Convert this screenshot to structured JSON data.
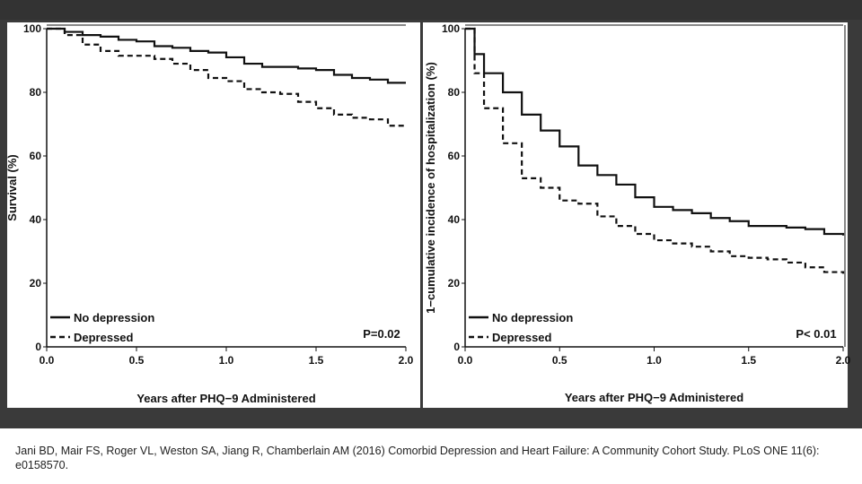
{
  "chart_data": [
    {
      "type": "line",
      "ylabel": "Survival (%)",
      "xlabel": "Years after PHQ−9 Administered",
      "xlim": [
        0,
        2
      ],
      "ylim": [
        0,
        100
      ],
      "xticks": [
        "0.0",
        "0.5",
        "1.0",
        "1.5",
        "2.0"
      ],
      "yticks": [
        "0",
        "20",
        "40",
        "60",
        "80",
        "100"
      ],
      "legend": [
        "No depression",
        "Depressed"
      ],
      "annotation": "P=0.02",
      "series": [
        {
          "name": "No depression",
          "style": "solid",
          "x": [
            0,
            0.1,
            0.2,
            0.3,
            0.4,
            0.5,
            0.6,
            0.7,
            0.8,
            0.9,
            1.0,
            1.1,
            1.2,
            1.3,
            1.4,
            1.5,
            1.6,
            1.7,
            1.8,
            1.9,
            2.0
          ],
          "y": [
            100,
            99,
            98,
            97.5,
            96.5,
            96,
            94.5,
            94,
            93,
            92.5,
            91,
            89,
            88,
            88,
            87.5,
            87,
            85.5,
            84.5,
            84,
            83,
            83
          ]
        },
        {
          "name": "Depressed",
          "style": "dashed",
          "x": [
            0,
            0.1,
            0.2,
            0.3,
            0.4,
            0.5,
            0.6,
            0.7,
            0.8,
            0.9,
            1.0,
            1.1,
            1.2,
            1.3,
            1.4,
            1.5,
            1.6,
            1.7,
            1.8,
            1.9,
            2.0
          ],
          "y": [
            100,
            98,
            95,
            93,
            91.5,
            91.5,
            90.5,
            89,
            87,
            84.5,
            83.5,
            81,
            80,
            79.5,
            77,
            75,
            73,
            72,
            71.5,
            69.5,
            69
          ]
        }
      ]
    },
    {
      "type": "line",
      "ylabel": "1−cumulative incidence of hospitalization (%)",
      "xlabel": "Years after PHQ−9 Administered",
      "xlim": [
        0,
        2
      ],
      "ylim": [
        0,
        100
      ],
      "xticks": [
        "0.0",
        "0.5",
        "1.0",
        "1.5",
        "2.0"
      ],
      "yticks": [
        "0",
        "20",
        "40",
        "60",
        "80",
        "100"
      ],
      "legend": [
        "No depression",
        "Depressed"
      ],
      "annotation": "P< 0.01",
      "series": [
        {
          "name": "No depression",
          "style": "solid",
          "x": [
            0,
            0.05,
            0.1,
            0.2,
            0.3,
            0.4,
            0.5,
            0.6,
            0.7,
            0.8,
            0.9,
            1.0,
            1.1,
            1.2,
            1.3,
            1.4,
            1.5,
            1.6,
            1.7,
            1.8,
            1.9,
            2.0
          ],
          "y": [
            100,
            92,
            86,
            80,
            73,
            68,
            63,
            57,
            54,
            51,
            47,
            44,
            43,
            42,
            40.5,
            39.5,
            38,
            38,
            37.5,
            37,
            35.5,
            35
          ]
        },
        {
          "name": "Depressed",
          "style": "dashed",
          "x": [
            0,
            0.05,
            0.1,
            0.2,
            0.3,
            0.4,
            0.5,
            0.6,
            0.7,
            0.8,
            0.9,
            1.0,
            1.1,
            1.2,
            1.3,
            1.4,
            1.5,
            1.6,
            1.7,
            1.8,
            1.9,
            2.0
          ],
          "y": [
            100,
            86,
            75,
            64,
            53,
            50,
            46,
            45,
            41,
            38,
            35.5,
            33.5,
            32.5,
            31.5,
            30,
            28.5,
            28,
            27.5,
            26.5,
            25,
            23.5,
            23
          ]
        }
      ]
    }
  ],
  "citation": "Jani BD, Mair FS, Roger VL, Weston SA, Jiang R, Chamberlain AM (2016) Comorbid Depression and Heart Failure: A Community Cohort Study. PLoS ONE 11(6): e0158570.",
  "colors": {
    "background": "#3a3a3a",
    "plot": "#ffffff",
    "line": "#111111"
  }
}
